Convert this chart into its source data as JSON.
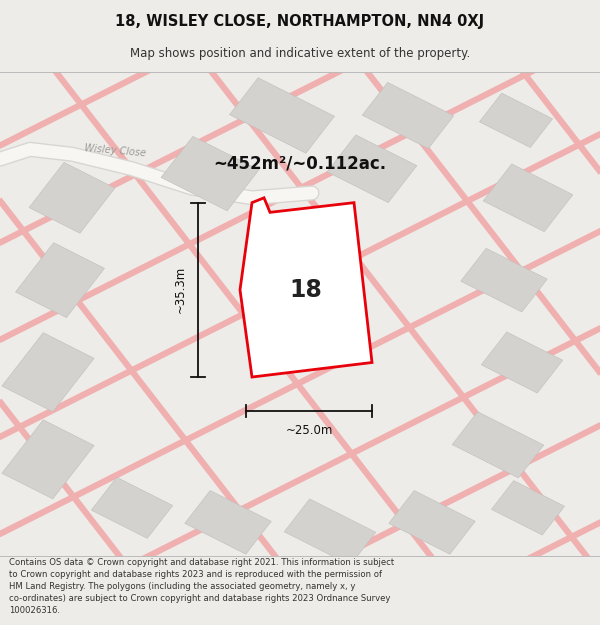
{
  "title_line1": "18, WISLEY CLOSE, NORTHAMPTON, NN4 0XJ",
  "title_line2": "Map shows position and indicative extent of the property.",
  "area_text": "~452m²/~0.112ac.",
  "number_label": "18",
  "dim_height": "~35.3m",
  "dim_width": "~25.0m",
  "street_label": "Wisley Close",
  "footer_text": "Contains OS data © Crown copyright and database right 2021. This information is subject to Crown copyright and database rights 2023 and is reproduced with the permission of HM Land Registry. The polygons (including the associated geometry, namely x, y co-ordinates) are subject to Crown copyright and database rights 2023 Ordnance Survey 100026316.",
  "bg_color": "#eeece8",
  "map_bg": "#eeece8",
  "building_color": "#d4d2ce",
  "plot_fill": "#ffffff",
  "plot_edge": "#e8000a",
  "dim_color": "#111111",
  "pink_road_color": "#f0b0b0",
  "white_road_color": "#f8f6f2",
  "street_text_color": "#999999",
  "title_color": "#111111",
  "subtitle_color": "#333333",
  "footer_color": "#333333"
}
